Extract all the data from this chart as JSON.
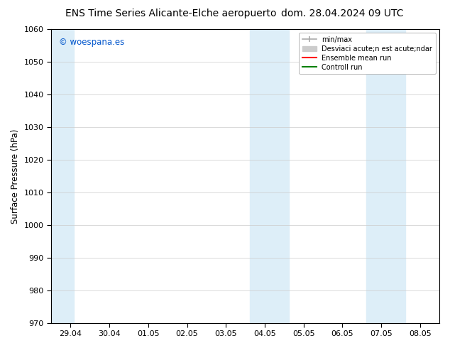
{
  "title_left": "ENS Time Series Alicante-Elche aeropuerto",
  "title_right": "dom. 28.04.2024 09 UTC",
  "ylabel": "Surface Pressure (hPa)",
  "ylim": [
    970,
    1060
  ],
  "yticks": [
    970,
    980,
    990,
    1000,
    1010,
    1020,
    1030,
    1040,
    1050,
    1060
  ],
  "xtick_labels": [
    "29.04",
    "30.04",
    "01.05",
    "02.05",
    "03.05",
    "04.05",
    "05.05",
    "06.05",
    "07.05",
    "08.05"
  ],
  "xtick_positions": [
    0,
    1,
    2,
    3,
    4,
    5,
    6,
    7,
    8,
    9
  ],
  "xlim": [
    -0.5,
    9.5
  ],
  "shaded_bands": [
    {
      "x_start": -0.5,
      "x_end": 0.08,
      "color": "#ddeef8"
    },
    {
      "x_start": 4.62,
      "x_end": 5.62,
      "color": "#ddeef8"
    },
    {
      "x_start": 7.62,
      "x_end": 8.62,
      "color": "#ddeef8"
    }
  ],
  "watermark_text": "© woespana.es",
  "watermark_color": "#0055cc",
  "legend_label_minmax": "min/max",
  "legend_label_std": "Desviaci acute;n est acute;ndar",
  "legend_label_ensemble": "Ensemble mean run",
  "legend_label_control": "Controll run",
  "legend_color_minmax": "#aaaaaa",
  "legend_color_std": "#cccccc",
  "legend_color_ensemble": "red",
  "legend_color_control": "green",
  "bg_color": "#ffffff",
  "plot_bg_color": "#ffffff",
  "grid_color": "#cccccc",
  "title_fontsize": 10,
  "axis_label_fontsize": 8.5,
  "tick_fontsize": 8
}
